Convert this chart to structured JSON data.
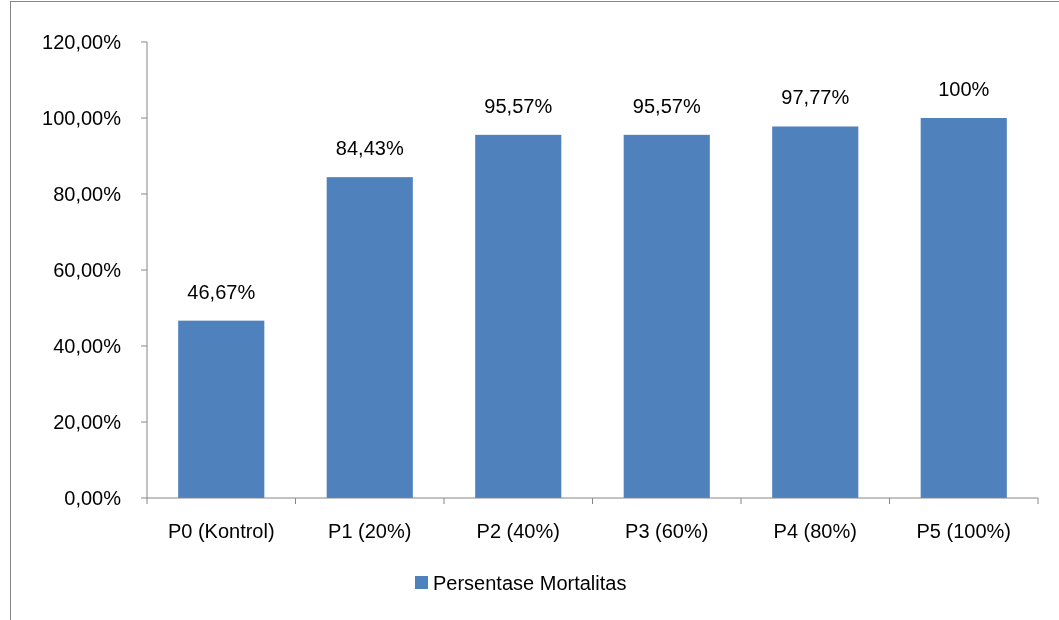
{
  "chart_data": {
    "type": "bar",
    "categories": [
      "P0 (Kontrol)",
      "P1 (20%)",
      "P2 (40%)",
      "P3 (60%)",
      "P4 (80%)",
      "P5 (100%)"
    ],
    "series": [
      {
        "name": "Persentase Mortalitas",
        "color": "#4f81bd",
        "values": [
          46.67,
          84.43,
          95.57,
          95.57,
          97.77,
          100
        ],
        "value_labels": [
          "46,67%",
          "84,43%",
          "95,57%",
          "95,57%",
          "97,77%",
          "100%"
        ]
      }
    ],
    "ylim": [
      0,
      120
    ],
    "yticks": [
      {
        "value": 0,
        "label": "0,00%"
      },
      {
        "value": 20,
        "label": "20,00%"
      },
      {
        "value": 40,
        "label": "40,00%"
      },
      {
        "value": 60,
        "label": "60,00%"
      },
      {
        "value": 80,
        "label": "80,00%"
      },
      {
        "value": 100,
        "label": "100,00%"
      },
      {
        "value": 120,
        "label": "120,00%"
      }
    ],
    "grid": false,
    "legend": "bottom"
  }
}
